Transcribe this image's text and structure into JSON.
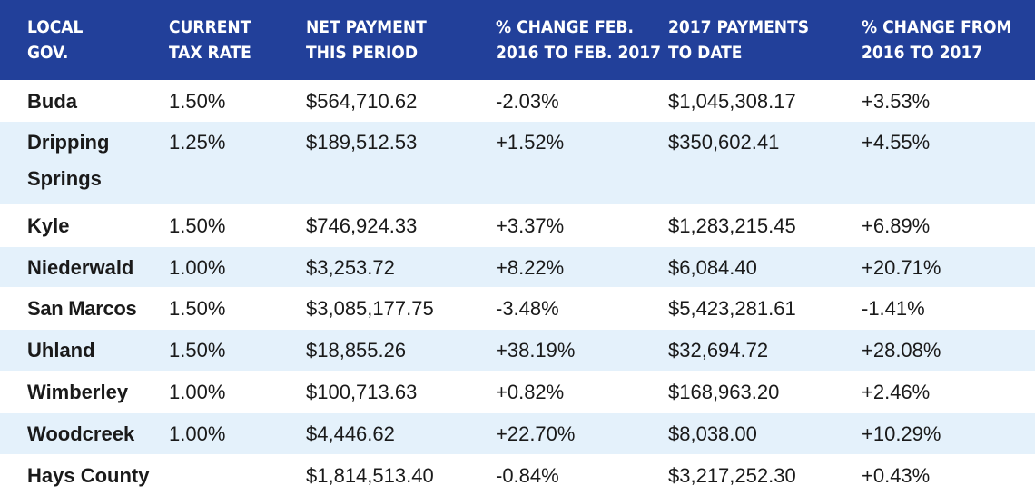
{
  "header": {
    "local_gov": "LOCAL GOV.",
    "tax_rate": "CURRENT TAX RATE",
    "net_payment": "NET PAYMENT THIS PERIOD",
    "pct_change_feb": "% CHANGE FEB. 2016 TO FEB. 2017",
    "payments_to_date": "2017 PAYMENTS TO DATE",
    "pct_change_year": "% CHANGE FROM 2016 TO 2017"
  },
  "rows": [
    {
      "gov": "Buda",
      "rate": "1.50%",
      "net": "$564,710.62",
      "chg_feb": "-2.03%",
      "to_date": "$1,045,308.17",
      "chg_year": "+3.53%"
    },
    {
      "gov": "Dripping Springs",
      "rate": "1.25%",
      "net": "$189,512.53",
      "chg_feb": "+1.52%",
      "to_date": "$350,602.41",
      "chg_year": "+4.55%"
    },
    {
      "gov": "Kyle",
      "rate": "1.50%",
      "net": "$746,924.33",
      "chg_feb": "+3.37%",
      "to_date": "$1,283,215.45",
      "chg_year": "+6.89%"
    },
    {
      "gov": "Niederwald",
      "rate": "1.00%",
      "net": "$3,253.72",
      "chg_feb": "+8.22%",
      "to_date": "$6,084.40",
      "chg_year": "+20.71%"
    },
    {
      "gov": "San Marcos",
      "rate": "1.50%",
      "net": "$3,085,177.75",
      "chg_feb": "-3.48%",
      "to_date": "$5,423,281.61",
      "chg_year": "-1.41%"
    },
    {
      "gov": "Uhland",
      "rate": "1.50%",
      "net": "$18,855.26",
      "chg_feb": "+38.19%",
      "to_date": "$32,694.72",
      "chg_year": "+28.08%"
    },
    {
      "gov": "Wimberley",
      "rate": "1.00%",
      "net": "$100,713.63",
      "chg_feb": "+0.82%",
      "to_date": "$168,963.20",
      "chg_year": "+2.46%"
    },
    {
      "gov": "Woodcreek",
      "rate": "1.00%",
      "net": "$4,446.62",
      "chg_feb": "+22.70%",
      "to_date": "$8,038.00",
      "chg_year": "+10.29%"
    },
    {
      "gov": "Hays County",
      "rate": "",
      "net": "$1,814,513.40",
      "chg_feb": "-0.84%",
      "to_date": "$3,217,252.30",
      "chg_year": "+0.43%"
    }
  ],
  "colors": {
    "header_bg": "#22409a",
    "header_text": "#ffffff",
    "row_alt_bg": "#e4f1fb",
    "row_bg": "#ffffff"
  }
}
